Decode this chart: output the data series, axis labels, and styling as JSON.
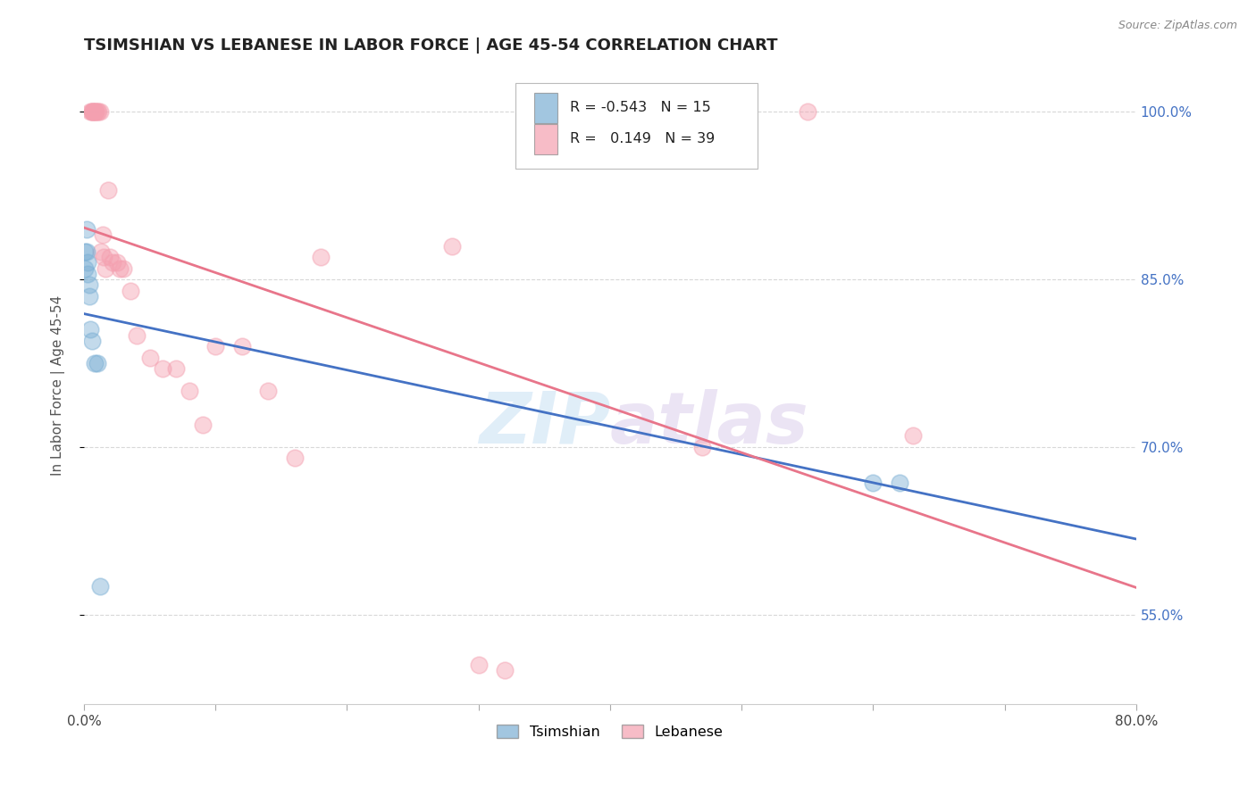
{
  "title": "TSIMSHIAN VS LEBANESE IN LABOR FORCE | AGE 45-54 CORRELATION CHART",
  "source": "Source: ZipAtlas.com",
  "ylabel": "In Labor Force | Age 45-54",
  "xlim": [
    0.0,
    0.8
  ],
  "ylim": [
    0.47,
    1.04
  ],
  "y_ticks_right": [
    1.0,
    0.85,
    0.7,
    0.55
  ],
  "y_tick_labels_right": [
    "100.0%",
    "85.0%",
    "70.0%",
    "55.0%"
  ],
  "watermark": "ZIPatlas",
  "tsimshian_color": "#7bafd4",
  "lebanese_color": "#f4a0b0",
  "tsimshian_line_color": "#4472c4",
  "lebanese_line_color": "#e8758a",
  "legend_tsimshian_R": "-0.543",
  "legend_tsimshian_N": "15",
  "legend_lebanese_R": "0.149",
  "legend_lebanese_N": "39",
  "tsimshian_x": [
    0.001,
    0.001,
    0.002,
    0.002,
    0.003,
    0.003,
    0.004,
    0.004,
    0.005,
    0.006,
    0.008,
    0.01,
    0.012,
    0.6,
    0.62
  ],
  "tsimshian_y": [
    0.875,
    0.86,
    0.895,
    0.875,
    0.855,
    0.865,
    0.835,
    0.845,
    0.805,
    0.795,
    0.775,
    0.775,
    0.575,
    0.668,
    0.668
  ],
  "lebanese_x": [
    0.005,
    0.006,
    0.006,
    0.007,
    0.007,
    0.008,
    0.009,
    0.009,
    0.01,
    0.011,
    0.012,
    0.013,
    0.014,
    0.015,
    0.016,
    0.018,
    0.02,
    0.022,
    0.025,
    0.027,
    0.03,
    0.035,
    0.04,
    0.05,
    0.06,
    0.07,
    0.08,
    0.09,
    0.1,
    0.12,
    0.14,
    0.16,
    0.18,
    0.28,
    0.3,
    0.32,
    0.47,
    0.55,
    0.63
  ],
  "lebanese_y": [
    1.0,
    1.0,
    1.0,
    1.0,
    1.0,
    1.0,
    1.0,
    1.0,
    1.0,
    1.0,
    1.0,
    0.875,
    0.89,
    0.87,
    0.86,
    0.93,
    0.87,
    0.865,
    0.865,
    0.86,
    0.86,
    0.84,
    0.8,
    0.78,
    0.77,
    0.77,
    0.75,
    0.72,
    0.79,
    0.79,
    0.75,
    0.69,
    0.87,
    0.88,
    0.505,
    0.5,
    0.7,
    1.0,
    0.71
  ],
  "background_color": "#ffffff",
  "grid_color": "#d8d8d8",
  "title_fontsize": 13,
  "axis_label_fontsize": 11,
  "tick_fontsize": 11,
  "marker_size": 180,
  "marker_alpha": 0.45,
  "marker_edge_alpha": 0.7,
  "marker_edge_width": 1.2
}
